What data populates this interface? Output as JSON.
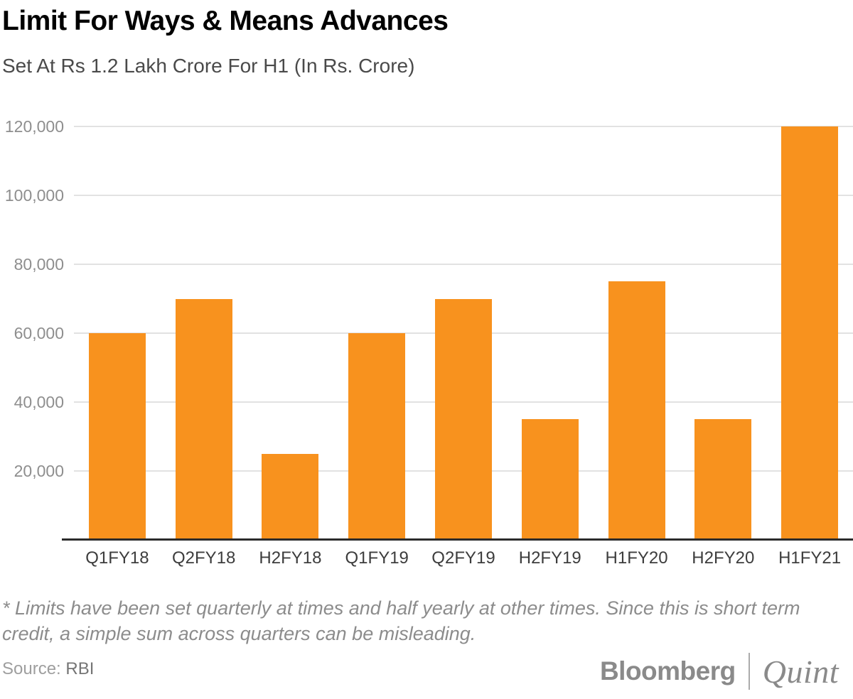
{
  "header": {
    "title": "Limit For Ways & Means Advances",
    "subtitle": "Set At Rs 1.2 Lakh Crore For H1 (In Rs. Crore)"
  },
  "chart_data": {
    "type": "bar",
    "title": "Limit For Ways & Means Advances",
    "subtitle": "Set At Rs 1.2 Lakh Crore For H1 (In Rs. Crore)",
    "categories": [
      "Q1FY18",
      "Q2FY18",
      "H2FY18",
      "Q1FY19",
      "Q2FY19",
      "H2FY19",
      "H1FY20",
      "H2FY20",
      "H1FY21"
    ],
    "values": [
      60000,
      70000,
      25000,
      60000,
      70000,
      35000,
      75000,
      35000,
      120000
    ],
    "xlabel": "",
    "ylabel": "In Rs. Crore",
    "ylim": [
      0,
      120000
    ],
    "yticks": [
      20000,
      40000,
      60000,
      80000,
      100000,
      120000
    ],
    "ytick_labels": [
      "20,000",
      "40,000",
      "60,000",
      "80,000",
      "100,000",
      "120,000"
    ],
    "grid": "horizontal-only",
    "legend": false,
    "bar_color": "#F8921E"
  },
  "footnote": "* Limits have been set quarterly at times and half yearly at other times. Since this is short term credit, a simple sum across quarters can be misleading.",
  "source": {
    "label": "Source:",
    "value": "RBI"
  },
  "branding": {
    "primary": "Bloomberg",
    "secondary": "Quint"
  },
  "colors": {
    "bar": "#F8921E",
    "title": "#000000",
    "subtitle": "#4A4A4A",
    "ytick_label": "#8E8E8E",
    "xtick_label": "#3D3D3D",
    "gridline": "#E2E2E2",
    "baseline": "#2B2B2B",
    "footnote": "#8C8C8C",
    "source_text": "#9E9E9E",
    "logo": "#8A8A8A"
  }
}
